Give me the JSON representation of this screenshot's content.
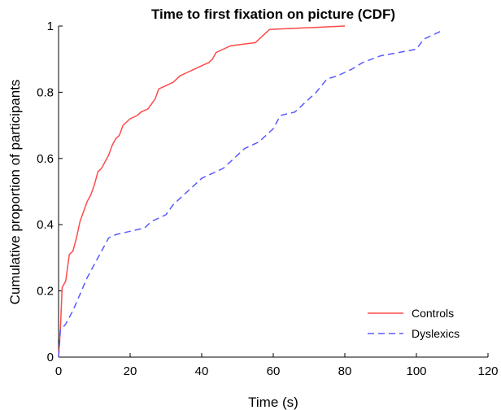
{
  "chart_data": {
    "type": "line",
    "title": "Time to first fixation on picture (CDF)",
    "xlabel": "Time (s)",
    "ylabel": "Cumulative proportion of participants",
    "xlim": [
      0,
      120
    ],
    "ylim": [
      0,
      1
    ],
    "xticks": [
      0,
      20,
      40,
      60,
      80,
      100,
      120
    ],
    "yticks": [
      0,
      0.2,
      0.4,
      0.6,
      0.8,
      1
    ],
    "xtick_labels": [
      "0",
      "20",
      "40",
      "60",
      "80",
      "100",
      "120"
    ],
    "ytick_labels": [
      "0",
      "0.2",
      "0.4",
      "0.6",
      "0.8",
      "1"
    ],
    "grid": false,
    "legend_position": "bottom-right",
    "series": [
      {
        "name": "Controls",
        "color": "#ff4a4a",
        "dash": "solid",
        "points": [
          [
            0,
            0
          ],
          [
            0.5,
            0.08
          ],
          [
            1,
            0.21
          ],
          [
            2,
            0.23
          ],
          [
            3,
            0.31
          ],
          [
            4,
            0.32
          ],
          [
            5,
            0.36
          ],
          [
            6,
            0.41
          ],
          [
            7,
            0.44
          ],
          [
            8,
            0.47
          ],
          [
            9,
            0.49
          ],
          [
            10,
            0.52
          ],
          [
            11,
            0.56
          ],
          [
            12,
            0.57
          ],
          [
            13,
            0.59
          ],
          [
            14,
            0.61
          ],
          [
            15,
            0.64
          ],
          [
            16,
            0.66
          ],
          [
            17,
            0.67
          ],
          [
            18,
            0.7
          ],
          [
            19,
            0.71
          ],
          [
            20,
            0.72
          ],
          [
            22,
            0.73
          ],
          [
            23,
            0.74
          ],
          [
            25,
            0.75
          ],
          [
            27,
            0.78
          ],
          [
            28,
            0.81
          ],
          [
            30,
            0.82
          ],
          [
            32,
            0.83
          ],
          [
            34,
            0.85
          ],
          [
            36,
            0.86
          ],
          [
            38,
            0.87
          ],
          [
            40,
            0.88
          ],
          [
            42,
            0.89
          ],
          [
            43,
            0.9
          ],
          [
            44,
            0.92
          ],
          [
            46,
            0.93
          ],
          [
            48,
            0.94
          ],
          [
            55,
            0.95
          ],
          [
            57,
            0.97
          ],
          [
            59,
            0.99
          ],
          [
            70,
            0.995
          ],
          [
            80,
            1.0
          ]
        ]
      },
      {
        "name": "Dyslexics",
        "color": "#5a5aff",
        "dash": "dashed",
        "points": [
          [
            0,
            0
          ],
          [
            0.5,
            0.08
          ],
          [
            2,
            0.1
          ],
          [
            4,
            0.14
          ],
          [
            6,
            0.19
          ],
          [
            8,
            0.24
          ],
          [
            10,
            0.28
          ],
          [
            12,
            0.32
          ],
          [
            14,
            0.36
          ],
          [
            16,
            0.37
          ],
          [
            20,
            0.38
          ],
          [
            24,
            0.39
          ],
          [
            26,
            0.41
          ],
          [
            28,
            0.42
          ],
          [
            30,
            0.43
          ],
          [
            32,
            0.46
          ],
          [
            34,
            0.48
          ],
          [
            36,
            0.5
          ],
          [
            38,
            0.52
          ],
          [
            40,
            0.54
          ],
          [
            42,
            0.55
          ],
          [
            44,
            0.56
          ],
          [
            46,
            0.57
          ],
          [
            48,
            0.59
          ],
          [
            50,
            0.61
          ],
          [
            52,
            0.63
          ],
          [
            54,
            0.64
          ],
          [
            56,
            0.65
          ],
          [
            58,
            0.67
          ],
          [
            60,
            0.69
          ],
          [
            62,
            0.73
          ],
          [
            66,
            0.74
          ],
          [
            68,
            0.76
          ],
          [
            70,
            0.78
          ],
          [
            72,
            0.8
          ],
          [
            75,
            0.84
          ],
          [
            78,
            0.85
          ],
          [
            82,
            0.87
          ],
          [
            85,
            0.89
          ],
          [
            90,
            0.91
          ],
          [
            95,
            0.92
          ],
          [
            100,
            0.93
          ],
          [
            102,
            0.96
          ],
          [
            104,
            0.97
          ],
          [
            107,
            0.985
          ]
        ]
      }
    ]
  }
}
